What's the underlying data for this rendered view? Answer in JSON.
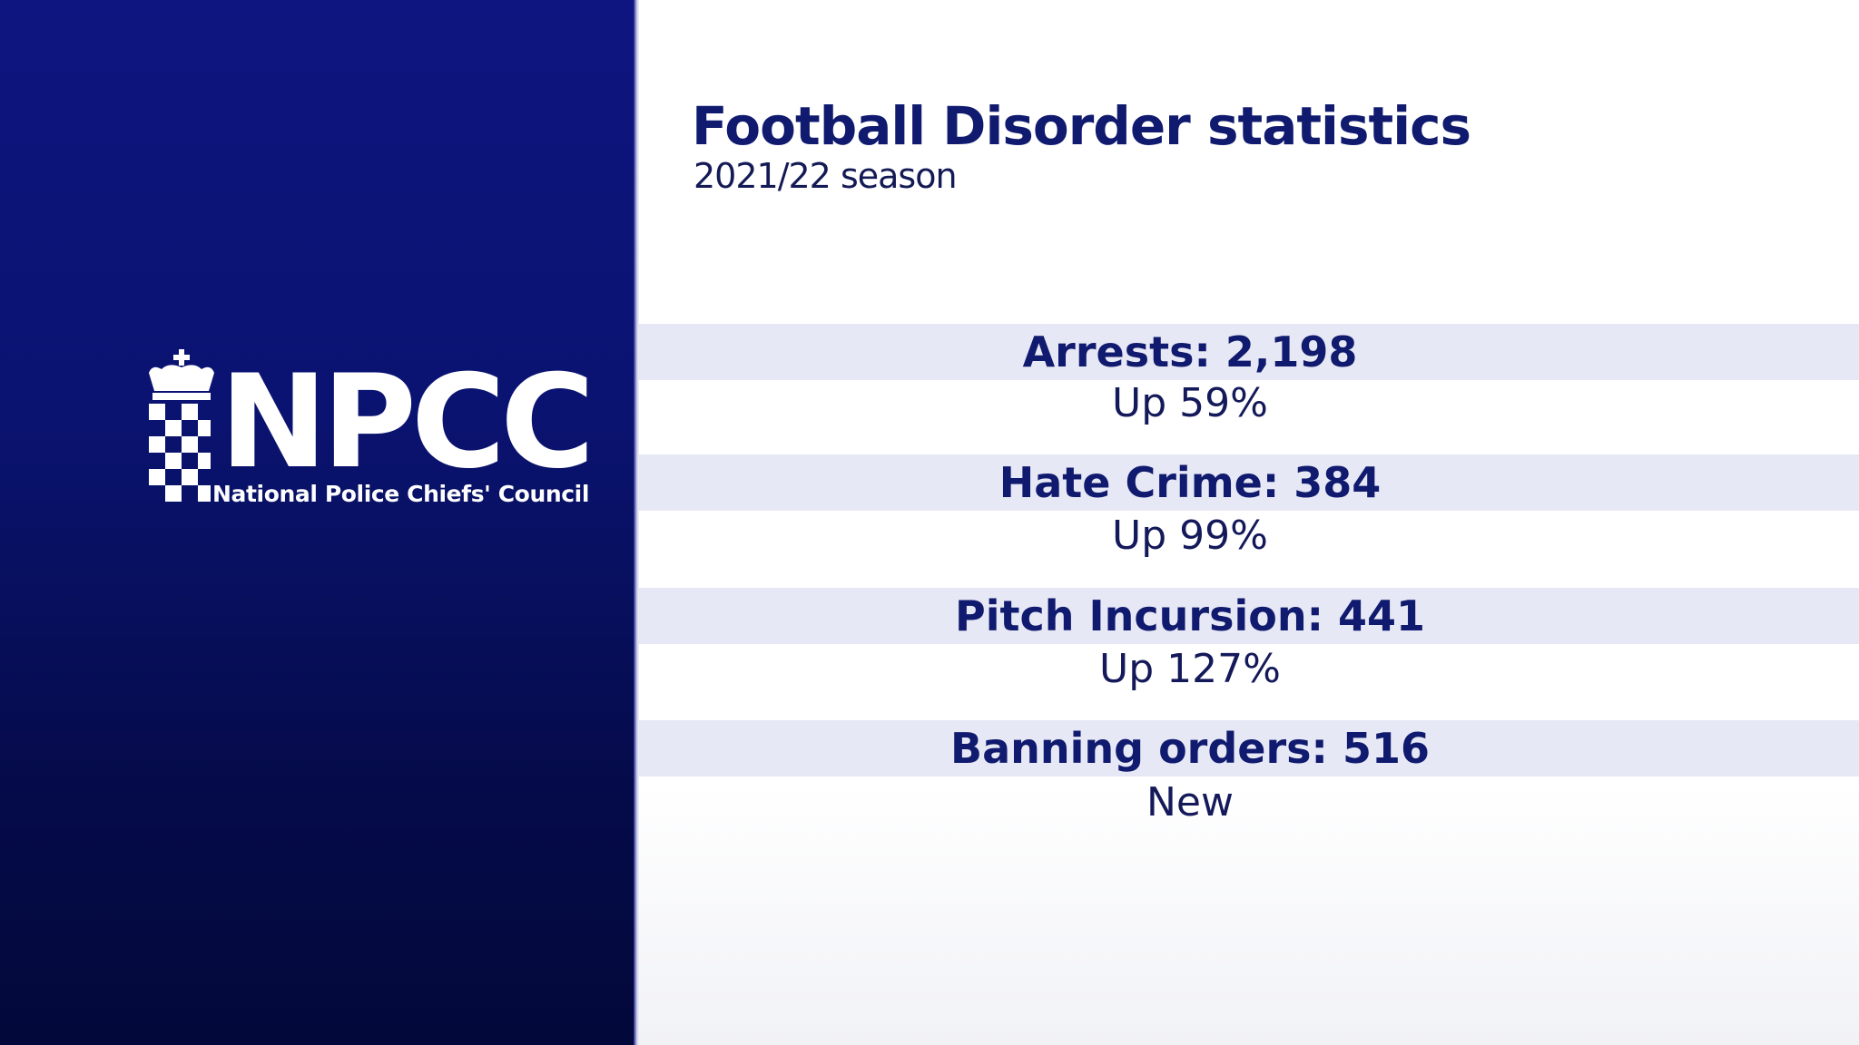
{
  "logo": {
    "name": "NPCC",
    "org_name": "National Police Chiefs' Council",
    "icon": "crown-chequer-icon"
  },
  "header": {
    "title": "Football Disorder statistics",
    "subtitle": "2021/22 season"
  },
  "stats": [
    {
      "label": "Arrests: 2,198",
      "change": "Up 59%"
    },
    {
      "label": "Hate Crime: 384",
      "change": "Up 99%"
    },
    {
      "label": "Pitch Incursion: 441",
      "change": "Up 127%"
    },
    {
      "label": "Banning orders: 516",
      "change": "New"
    }
  ],
  "colors": {
    "panel_blue": "#0e1580",
    "title_navy": "#101a6e",
    "band": "#e7e8f5"
  }
}
